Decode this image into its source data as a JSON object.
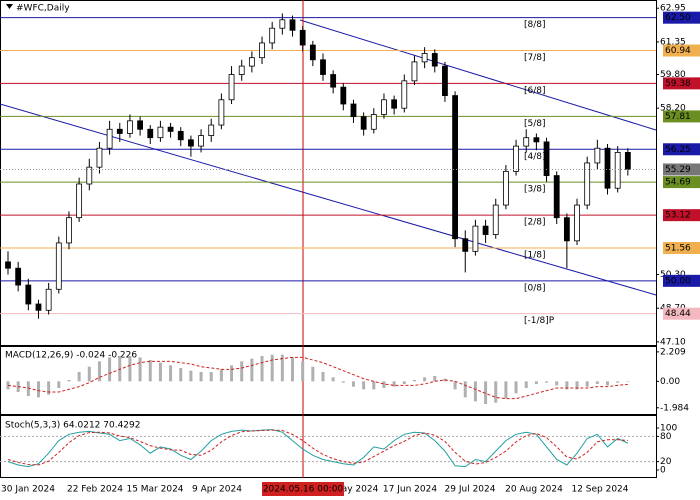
{
  "chart_data": {
    "type": "candlestick",
    "title": "#WFC,Daily",
    "ylim": [
      47.0,
      63.15
    ],
    "yticks": [
      62.95,
      61.35,
      {
        "value": 59.8,
        "label": "59.80"
      },
      {
        "value": 58.2,
        "label": "58.20"
      },
      {
        "value": 50.3,
        "label": "50.30"
      },
      {
        "value": 48.7,
        "label": "48.70"
      },
      {
        "value": 47.1,
        "label": "47.10"
      }
    ],
    "date_labels": [
      "30 Jan 2024",
      "22 Feb 2024",
      "15 Mar 2024",
      "9 Apr 2024",
      "ay 2024",
      "17 Jun 2024",
      "29 Jul 2024",
      "20 Aug 2024",
      "12 Sep 2024"
    ],
    "cursor_label": "2024.05.16 00:00",
    "current_price": 55.29,
    "current_price_label": "55.29",
    "murrey": [
      {
        "name": "[8/8]",
        "value": 62.5,
        "value_label": "62.50",
        "color": "#1a1aa8"
      },
      {
        "name": "[7/8]",
        "value": 60.94,
        "value_label": "60.94",
        "color": "#f0b050"
      },
      {
        "name": "[6/8]",
        "value": 59.38,
        "value_label": "59.38",
        "color": "#c0102a"
      },
      {
        "name": "[5/8]",
        "value": 57.81,
        "value_label": "57.81",
        "color": "#6b8e23"
      },
      {
        "name": "[4/8]",
        "value": 56.25,
        "value_label": "56.25",
        "color": "#1a1aa8"
      },
      {
        "name": "[3/8]",
        "value": 54.69,
        "value_label": "54.69",
        "color": "#6b8e23"
      },
      {
        "name": "[2/8]",
        "value": 53.12,
        "value_label": "53.12",
        "color": "#c0102a"
      },
      {
        "name": "[1/8]",
        "value": 51.56,
        "value_label": "51.56",
        "color": "#f0b050"
      },
      {
        "name": "[0/8]",
        "value": 50.0,
        "value_label": "50.00",
        "color": "#1a1aa8"
      },
      {
        "name": "[-1/8]P",
        "value": 48.44,
        "value_label": "48.44",
        "color": "#f4b8c0"
      }
    ],
    "candles": [
      [
        50.9,
        51.4,
        50.3,
        50.6
      ],
      [
        50.6,
        50.9,
        49.5,
        49.8
      ],
      [
        49.8,
        50.1,
        48.6,
        48.9
      ],
      [
        48.9,
        49.1,
        48.2,
        48.6
      ],
      [
        48.6,
        49.9,
        48.4,
        49.6
      ],
      [
        49.6,
        52.1,
        49.4,
        51.8
      ],
      [
        51.8,
        53.3,
        51.5,
        53.0
      ],
      [
        53.0,
        54.9,
        52.8,
        54.6
      ],
      [
        54.6,
        55.8,
        54.3,
        55.4
      ],
      [
        55.4,
        56.6,
        55.1,
        56.3
      ],
      [
        56.3,
        57.6,
        56.0,
        57.2
      ],
      [
        57.2,
        57.5,
        56.6,
        57.0
      ],
      [
        57.0,
        57.9,
        56.8,
        57.6
      ],
      [
        57.6,
        57.8,
        56.9,
        57.2
      ],
      [
        57.2,
        57.4,
        56.5,
        56.8
      ],
      [
        56.8,
        57.6,
        56.6,
        57.3
      ],
      [
        57.3,
        57.5,
        56.8,
        57.1
      ],
      [
        57.1,
        57.3,
        56.4,
        56.7
      ],
      [
        56.7,
        56.9,
        55.9,
        56.4
      ],
      [
        56.4,
        57.2,
        56.1,
        56.9
      ],
      [
        56.9,
        57.7,
        56.6,
        57.4
      ],
      [
        57.4,
        58.9,
        57.2,
        58.6
      ],
      [
        58.6,
        60.2,
        58.4,
        59.8
      ],
      [
        59.8,
        60.5,
        59.5,
        60.2
      ],
      [
        60.2,
        60.9,
        59.9,
        60.6
      ],
      [
        60.6,
        61.6,
        60.3,
        61.3
      ],
      [
        61.3,
        62.3,
        61.0,
        62.0
      ],
      [
        62.0,
        62.7,
        61.7,
        62.4
      ],
      [
        62.4,
        62.6,
        61.6,
        61.9
      ],
      [
        61.9,
        62.1,
        60.9,
        61.2
      ],
      [
        61.2,
        61.4,
        60.2,
        60.5
      ],
      [
        60.5,
        60.8,
        59.5,
        59.8
      ],
      [
        59.8,
        60.0,
        58.9,
        59.2
      ],
      [
        59.2,
        59.4,
        58.1,
        58.4
      ],
      [
        58.4,
        58.6,
        57.5,
        57.8
      ],
      [
        57.8,
        58.0,
        56.9,
        57.2
      ],
      [
        57.2,
        58.2,
        57.0,
        57.9
      ],
      [
        57.9,
        58.9,
        57.7,
        58.6
      ],
      [
        58.6,
        58.8,
        57.9,
        58.2
      ],
      [
        58.2,
        59.8,
        58.0,
        59.5
      ],
      [
        59.5,
        60.7,
        59.3,
        60.4
      ],
      [
        60.4,
        61.1,
        60.1,
        60.8
      ],
      [
        60.8,
        61.0,
        59.9,
        60.2
      ],
      [
        60.2,
        60.4,
        58.5,
        58.8
      ],
      [
        58.8,
        59.0,
        51.6,
        52.0
      ],
      [
        52.0,
        52.4,
        50.4,
        51.4
      ],
      [
        51.4,
        52.9,
        51.2,
        52.6
      ],
      [
        52.6,
        52.9,
        51.8,
        52.2
      ],
      [
        52.2,
        53.9,
        52.0,
        53.6
      ],
      [
        53.6,
        55.5,
        53.4,
        55.2
      ],
      [
        55.2,
        56.7,
        55.0,
        56.4
      ],
      [
        56.4,
        57.2,
        56.1,
        56.8
      ],
      [
        56.8,
        57.0,
        56.2,
        56.6
      ],
      [
        56.6,
        56.8,
        54.7,
        55.0
      ],
      [
        55.0,
        55.2,
        52.7,
        53.0
      ],
      [
        53.0,
        53.2,
        50.6,
        51.9
      ],
      [
        51.9,
        53.9,
        51.7,
        53.6
      ],
      [
        53.6,
        55.9,
        53.4,
        55.6
      ],
      [
        55.6,
        56.7,
        55.3,
        56.3
      ],
      [
        56.3,
        56.5,
        54.1,
        54.4
      ],
      [
        54.4,
        56.4,
        54.2,
        56.1
      ],
      [
        56.1,
        56.3,
        55.0,
        55.3
      ]
    ],
    "macd": {
      "label": "MACD(12,26,9) -0.024 -0.226",
      "ylim": [
        -2.3,
        2.5
      ],
      "yticks": [
        2.209,
        {
          "value": 0,
          "label": "0.00"
        },
        -1.984
      ],
      "main": [
        -0.6,
        -0.8,
        -1.1,
        -1.2,
        -1.0,
        -0.5,
        0.1,
        0.7,
        1.1,
        1.5,
        1.8,
        1.9,
        1.9,
        1.8,
        1.6,
        1.4,
        1.2,
        1.0,
        0.8,
        0.7,
        0.7,
        0.9,
        1.2,
        1.5,
        1.7,
        1.9,
        2.0,
        2.0,
        1.8,
        1.5,
        1.1,
        0.7,
        0.3,
        -0.1,
        -0.4,
        -0.6,
        -0.6,
        -0.5,
        -0.4,
        -0.2,
        0.1,
        0.3,
        0.4,
        0.2,
        -0.6,
        -1.2,
        -1.5,
        -1.7,
        -1.6,
        -1.3,
        -0.9,
        -0.5,
        -0.2,
        -0.1,
        -0.3,
        -0.6,
        -0.6,
        -0.4,
        -0.2,
        -0.3,
        -0.1,
        -0.024
      ],
      "signal": [
        -0.3,
        -0.4,
        -0.5,
        -0.7,
        -0.8,
        -0.8,
        -0.6,
        -0.4,
        -0.1,
        0.3,
        0.6,
        0.9,
        1.2,
        1.4,
        1.5,
        1.5,
        1.5,
        1.4,
        1.3,
        1.1,
        1.0,
        0.9,
        0.9,
        1.0,
        1.2,
        1.4,
        1.6,
        1.7,
        1.8,
        1.8,
        1.6,
        1.4,
        1.1,
        0.8,
        0.5,
        0.2,
        0.0,
        -0.2,
        -0.3,
        -0.3,
        -0.3,
        -0.2,
        0.0,
        0.1,
        0.0,
        -0.3,
        -0.6,
        -0.9,
        -1.2,
        -1.3,
        -1.3,
        -1.1,
        -0.9,
        -0.7,
        -0.5,
        -0.5,
        -0.5,
        -0.5,
        -0.4,
        -0.4,
        -0.3,
        -0.226
      ],
      "main_color": "#b0b0b0",
      "signal_color": "#d02020"
    },
    "stoch": {
      "label": "Stoch(5,3,3) 64.0212 70.4292",
      "ylim": [
        0,
        100
      ],
      "yticks": [
        100,
        80,
        20,
        0
      ],
      "levels": [
        80,
        20
      ],
      "k": [
        20,
        12,
        8,
        15,
        40,
        70,
        85,
        90,
        92,
        88,
        85,
        70,
        75,
        60,
        40,
        55,
        50,
        35,
        25,
        45,
        70,
        85,
        92,
        95,
        93,
        95,
        96,
        90,
        70,
        50,
        35,
        25,
        20,
        15,
        12,
        30,
        55,
        50,
        70,
        85,
        90,
        88,
        70,
        45,
        10,
        8,
        25,
        20,
        45,
        70,
        85,
        90,
        85,
        55,
        25,
        12,
        40,
        75,
        85,
        55,
        75,
        64.0212
      ],
      "d": [
        25,
        18,
        13,
        12,
        21,
        42,
        65,
        82,
        89,
        90,
        88,
        81,
        77,
        68,
        58,
        52,
        48,
        47,
        37,
        35,
        47,
        67,
        82,
        91,
        93,
        94,
        95,
        94,
        85,
        70,
        52,
        37,
        27,
        20,
        16,
        19,
        32,
        45,
        58,
        68,
        82,
        88,
        83,
        68,
        42,
        21,
        14,
        18,
        30,
        45,
        67,
        82,
        87,
        77,
        55,
        31,
        26,
        42,
        67,
        72,
        72,
        70.4292
      ],
      "k_color": "#20a0a0",
      "d_color": "#d02020"
    }
  }
}
